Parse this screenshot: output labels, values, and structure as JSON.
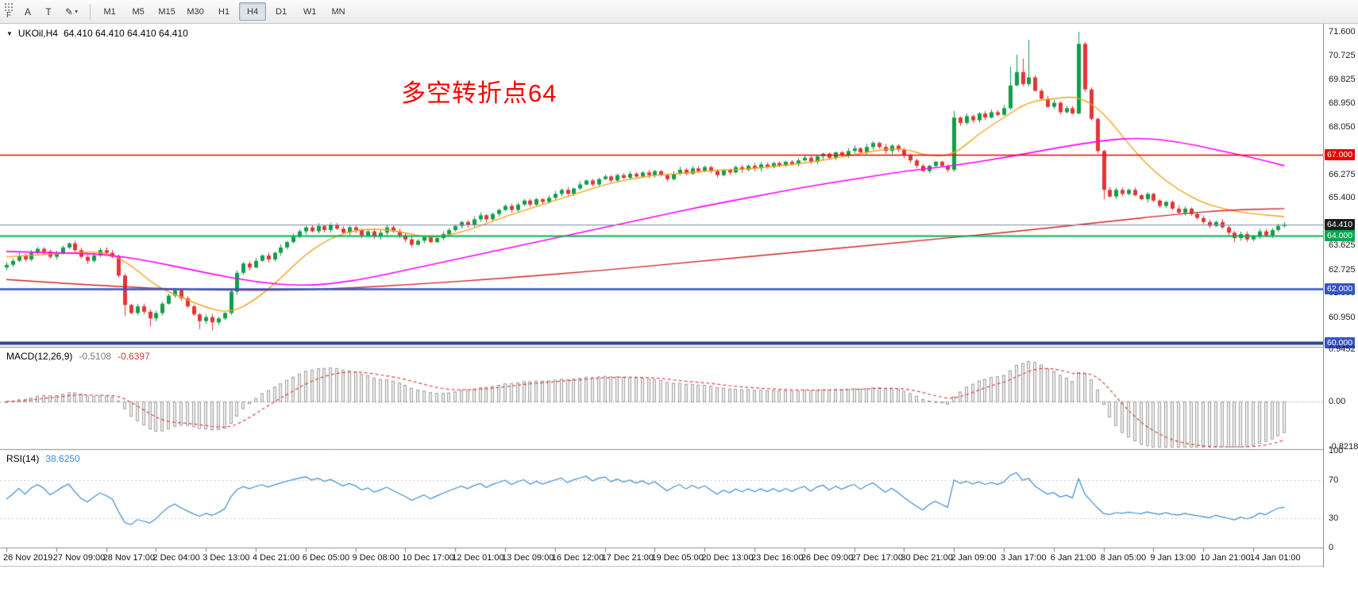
{
  "title": {
    "dropdown": "▼",
    "symbol": "UKOil,H4",
    "ohlc": "64.410 64.410 64.410 64.410"
  },
  "toolbar": {
    "handle": "F",
    "tools": [
      {
        "label": "A"
      },
      {
        "label": "T"
      },
      {
        "label": "✎"
      }
    ],
    "tool_caret": "▾",
    "timeframes": [
      "M1",
      "M5",
      "M15",
      "M30",
      "H1",
      "H4",
      "D1",
      "W1",
      "MN"
    ],
    "active_timeframe": "H4"
  },
  "annotation": {
    "text": "多空转折点64",
    "color": "#ff0000"
  },
  "chart_data": {
    "type": "candlestick",
    "symbol": "UKOil",
    "timeframe": "H4",
    "title": "UKOil,H4",
    "ylim": [
      59.9,
      71.9
    ],
    "first_open": 62.8,
    "closes": [
      62.9,
      63.05,
      63.25,
      63.1,
      63.35,
      63.5,
      63.4,
      63.2,
      63.35,
      63.55,
      63.7,
      63.45,
      63.2,
      63.05,
      63.25,
      63.45,
      63.35,
      63.2,
      62.5,
      61.4,
      61.1,
      61.35,
      61.15,
      60.9,
      61.1,
      61.45,
      61.75,
      61.95,
      61.65,
      61.35,
      61.05,
      60.8,
      60.95,
      60.75,
      60.9,
      61.1,
      61.9,
      62.6,
      62.95,
      62.8,
      63.05,
      63.25,
      63.1,
      63.35,
      63.55,
      63.75,
      63.95,
      64.15,
      64.3,
      64.15,
      64.35,
      64.2,
      64.4,
      64.25,
      64.1,
      64.3,
      64.2,
      64.0,
      64.15,
      63.95,
      64.1,
      64.3,
      64.15,
      64.0,
      63.85,
      63.65,
      63.8,
      63.95,
      63.75,
      63.9,
      64.05,
      64.2,
      64.35,
      64.5,
      64.4,
      64.6,
      64.75,
      64.6,
      64.8,
      64.95,
      65.1,
      64.95,
      65.15,
      65.3,
      65.15,
      65.35,
      65.25,
      65.4,
      65.55,
      65.7,
      65.55,
      65.75,
      65.9,
      66.05,
      65.9,
      66.1,
      66.2,
      66.05,
      66.25,
      66.15,
      66.3,
      66.2,
      66.35,
      66.25,
      66.4,
      66.25,
      66.1,
      66.3,
      66.45,
      66.3,
      66.5,
      66.4,
      66.55,
      66.4,
      66.25,
      66.45,
      66.35,
      66.55,
      66.45,
      66.6,
      66.5,
      66.65,
      66.55,
      66.7,
      66.6,
      66.75,
      66.65,
      66.8,
      66.9,
      66.75,
      66.95,
      67.05,
      66.9,
      67.1,
      67.0,
      67.15,
      67.25,
      67.1,
      67.3,
      67.45,
      67.3,
      67.15,
      67.35,
      67.2,
      67.0,
      66.8,
      66.6,
      66.4,
      66.6,
      66.75,
      66.6,
      66.45,
      68.4,
      68.2,
      68.45,
      68.3,
      68.55,
      68.4,
      68.6,
      68.5,
      68.75,
      69.6,
      70.1,
      69.65,
      69.9,
      69.4,
      69.1,
      68.8,
      68.95,
      68.6,
      68.75,
      68.55,
      71.15,
      69.45,
      68.35,
      67.15,
      65.7,
      65.45,
      65.7,
      65.55,
      65.7,
      65.5,
      65.35,
      65.55,
      65.3,
      65.1,
      65.25,
      65.0,
      64.85,
      65.0,
      64.8,
      64.65,
      64.5,
      64.35,
      64.5,
      64.3,
      64.1,
      63.9,
      64.05,
      63.85,
      63.95,
      64.15,
      64.0,
      64.2,
      64.35,
      64.41
    ],
    "high_overrides": {
      "152": 68.65,
      "161": 70.3,
      "162": 70.75,
      "163": 70.6,
      "164": 71.3,
      "172": 71.6
    },
    "low_overrides": {
      "19": 61.0,
      "23": 60.6,
      "31": 60.5,
      "33": 60.45,
      "176": 65.35,
      "197": 63.75
    },
    "colors": {
      "up": "#119e4b",
      "down": "#e23636",
      "macd_bar_fill": "#f0f0f0",
      "macd_bar_stroke": "#a0a0a0",
      "macd_signal": "#e04545",
      "rsi_line": "#3f8cd2",
      "separator": "#8c8c8c",
      "grid_dotted": "#c8c8c8"
    },
    "ma_lines": [
      {
        "name": "fast-ma",
        "color": "#f6a21d",
        "width": 1.4,
        "points": [
          [
            0,
            63.2
          ],
          [
            10,
            63.35
          ],
          [
            16,
            63.4
          ],
          [
            20,
            62.9
          ],
          [
            24,
            62.1
          ],
          [
            28,
            61.7
          ],
          [
            32,
            61.3
          ],
          [
            36,
            61.1
          ],
          [
            40,
            61.6
          ],
          [
            44,
            62.4
          ],
          [
            48,
            63.3
          ],
          [
            52,
            63.9
          ],
          [
            56,
            64.2
          ],
          [
            60,
            64.25
          ],
          [
            64,
            64.1
          ],
          [
            68,
            63.9
          ],
          [
            72,
            64.05
          ],
          [
            76,
            64.35
          ],
          [
            80,
            64.7
          ],
          [
            84,
            65.0
          ],
          [
            88,
            65.3
          ],
          [
            92,
            65.6
          ],
          [
            96,
            65.9
          ],
          [
            100,
            66.1
          ],
          [
            104,
            66.25
          ],
          [
            108,
            66.3
          ],
          [
            112,
            66.4
          ],
          [
            116,
            66.45
          ],
          [
            120,
            66.5
          ],
          [
            124,
            66.6
          ],
          [
            128,
            66.7
          ],
          [
            132,
            66.85
          ],
          [
            136,
            67.0
          ],
          [
            140,
            67.2
          ],
          [
            144,
            67.25
          ],
          [
            148,
            66.95
          ],
          [
            152,
            67.0
          ],
          [
            156,
            67.8
          ],
          [
            160,
            68.4
          ],
          [
            164,
            69.0
          ],
          [
            168,
            69.1
          ],
          [
            172,
            69.2
          ],
          [
            176,
            68.6
          ],
          [
            180,
            67.4
          ],
          [
            184,
            66.4
          ],
          [
            188,
            65.7
          ],
          [
            192,
            65.2
          ],
          [
            196,
            64.95
          ],
          [
            200,
            64.8
          ],
          [
            205,
            64.7
          ]
        ]
      },
      {
        "name": "medium-ma",
        "color": "#ff00ff",
        "width": 1.6,
        "points": [
          [
            0,
            63.4
          ],
          [
            8,
            63.35
          ],
          [
            16,
            63.3
          ],
          [
            24,
            63.0
          ],
          [
            32,
            62.6
          ],
          [
            40,
            62.25
          ],
          [
            48,
            62.1
          ],
          [
            56,
            62.3
          ],
          [
            64,
            62.7
          ],
          [
            72,
            63.1
          ],
          [
            80,
            63.5
          ],
          [
            88,
            63.9
          ],
          [
            96,
            64.3
          ],
          [
            104,
            64.7
          ],
          [
            112,
            65.1
          ],
          [
            120,
            65.45
          ],
          [
            128,
            65.8
          ],
          [
            136,
            66.1
          ],
          [
            144,
            66.4
          ],
          [
            152,
            66.6
          ],
          [
            160,
            66.9
          ],
          [
            168,
            67.25
          ],
          [
            176,
            67.55
          ],
          [
            182,
            67.65
          ],
          [
            188,
            67.5
          ],
          [
            194,
            67.2
          ],
          [
            200,
            66.9
          ],
          [
            205,
            66.6
          ]
        ]
      },
      {
        "name": "slow-ma",
        "color": "#d22222",
        "width": 1.4,
        "points": [
          [
            0,
            62.35
          ],
          [
            16,
            62.1
          ],
          [
            32,
            61.95
          ],
          [
            48,
            61.95
          ],
          [
            64,
            62.15
          ],
          [
            80,
            62.4
          ],
          [
            96,
            62.7
          ],
          [
            112,
            63.05
          ],
          [
            128,
            63.4
          ],
          [
            144,
            63.75
          ],
          [
            160,
            64.1
          ],
          [
            176,
            64.5
          ],
          [
            188,
            64.8
          ],
          [
            196,
            64.95
          ],
          [
            205,
            65.0
          ]
        ]
      }
    ],
    "levels": [
      {
        "name": "resistance-67",
        "price": 67.0,
        "color": "#ee0000",
        "w": 1.6
      },
      {
        "name": "bid-line",
        "price": 64.41,
        "color": "#7d8ca3",
        "w": 1
      },
      {
        "name": "support-64",
        "price": 64.0,
        "color": "#00b050",
        "w": 2
      },
      {
        "name": "support-62",
        "price": 62.0,
        "color": "#3653c8",
        "w": 2.4
      },
      {
        "name": "support-60",
        "price": 60.0,
        "color": "#2e3f8f",
        "w": 4
      }
    ],
    "price_labels": [
      {
        "text": "71.600",
        "price": 71.6
      },
      {
        "text": "70.725",
        "price": 70.725
      },
      {
        "text": "69.825",
        "price": 69.825
      },
      {
        "text": "68.950",
        "price": 68.95
      },
      {
        "text": "68.050",
        "price": 68.05
      },
      {
        "text": "66.275",
        "price": 66.275
      },
      {
        "text": "65.400",
        "price": 65.4
      },
      {
        "text": "63.625",
        "price": 63.625
      },
      {
        "text": "62.725",
        "price": 62.725
      },
      {
        "text": "61.850",
        "price": 61.85
      },
      {
        "text": "60.950",
        "price": 60.95
      }
    ],
    "price_tags": [
      {
        "text": "67.000",
        "price": 67.0,
        "bg": "#e60000"
      },
      {
        "text": "64.410",
        "price": 64.41,
        "bg": "#1c1c1c"
      },
      {
        "text": "64.000",
        "price": 64.0,
        "bg": "#00a84f"
      },
      {
        "text": "62.000",
        "price": 62.0,
        "bg": "#3653c8"
      },
      {
        "text": "60.000",
        "price": 60.0,
        "bg": "#3653c8"
      }
    ],
    "time_labels": [
      {
        "text": "26 Nov 2019",
        "bar": 0
      },
      {
        "text": "27 Nov 09:00",
        "bar": 8
      },
      {
        "text": "28 Nov 17:00",
        "bar": 16
      },
      {
        "text": "2 Dec 04:00",
        "bar": 24
      },
      {
        "text": "3 Dec 13:00",
        "bar": 32
      },
      {
        "text": "4 Dec 21:00",
        "bar": 40
      },
      {
        "text": "6 Dec 05:00",
        "bar": 48
      },
      {
        "text": "9 Dec 08:00",
        "bar": 56
      },
      {
        "text": "10 Dec 17:00",
        "bar": 64
      },
      {
        "text": "12 Dec 01:00",
        "bar": 72
      },
      {
        "text": "13 Dec 09:00",
        "bar": 80
      },
      {
        "text": "16 Dec 12:00",
        "bar": 88
      },
      {
        "text": "17 Dec 21:00",
        "bar": 96
      },
      {
        "text": "19 Dec 05:00",
        "bar": 104
      },
      {
        "text": "20 Dec 13:00",
        "bar": 112
      },
      {
        "text": "23 Dec 16:00",
        "bar": 120
      },
      {
        "text": "26 Dec 09:00",
        "bar": 128
      },
      {
        "text": "27 Dec 17:00",
        "bar": 136
      },
      {
        "text": "30 Dec 21:00",
        "bar": 144
      },
      {
        "text": "2 Jan 09:00",
        "bar": 152
      },
      {
        "text": "3 Jan 17:00",
        "bar": 160
      },
      {
        "text": "6 Jan 21:00",
        "bar": 168
      },
      {
        "text": "8 Jan 05:00",
        "bar": 176
      },
      {
        "text": "9 Jan 13:00",
        "bar": 184
      },
      {
        "text": "10 Jan 21:00",
        "bar": 192
      },
      {
        "text": "14 Jan 01:00",
        "bar": 200
      }
    ],
    "macd": {
      "name": "MACD(12,26,9)",
      "main": "-0.5108",
      "signal": "-0.6397",
      "params": [
        12,
        26,
        9
      ],
      "axis_max": 0.9452,
      "axis_min": -0.8218,
      "axis": [
        {
          "text": "0.9452",
          "value": 0.9452
        },
        {
          "text": "0.00",
          "value": 0
        },
        {
          "text": "-0.8218",
          "value": -0.8218
        }
      ]
    },
    "rsi": {
      "name": "RSI(14)",
      "value": "38.6250",
      "period": 14,
      "levels": [
        70,
        30
      ],
      "axis": [
        {
          "text": "100",
          "value": 100
        },
        {
          "text": "70",
          "value": 70
        },
        {
          "text": "30",
          "value": 30
        },
        {
          "text": "0",
          "value": 0
        }
      ]
    }
  }
}
